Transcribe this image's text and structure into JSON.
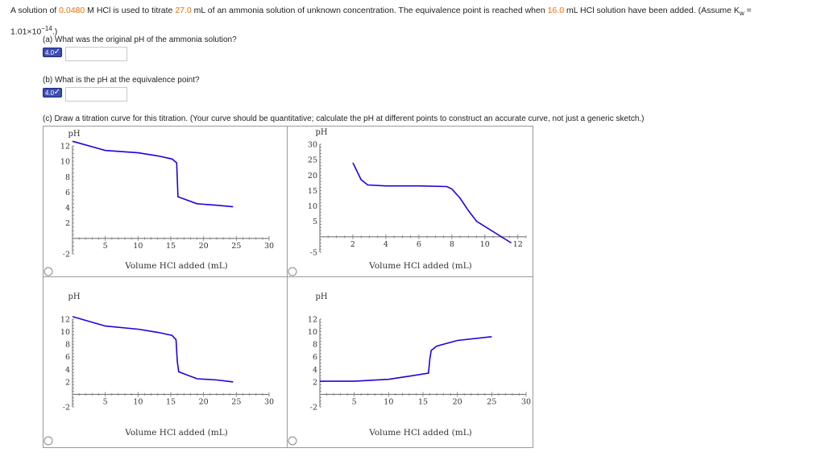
{
  "question": {
    "p1": "A solution of ",
    "hcl_conc": "0.0480",
    "p2": " M HCl is used to titrate ",
    "ammonia_volume": "27.0",
    "p3": " mL of an ammonia solution of unknown concentration. The equivalence point is reached when ",
    "eq_volume": "16.0",
    "p4": " mL HCl solution have been added. (Assume K",
    "kw_sub": "w",
    "p5": " =",
    "kw_value": "1.01×10",
    "kw_exp": "−14",
    "p6": ".)"
  },
  "parts": {
    "a": {
      "label": "(a) What was the original pH of the ammonia solution?",
      "badge": "4.0",
      "value": ""
    },
    "b": {
      "label": "(b) What is the pH at the equivalence point?",
      "badge": "4.0",
      "value": ""
    },
    "c": {
      "label": "(c) Draw a titration curve for this titration. (Your curve should be quantitative; calculate the pH at different points to construct an accurate curve, not just a generic sketch.)"
    }
  },
  "colors": {
    "curve": "#2200dd",
    "highlight": "#e8710a",
    "badge": "#3d4db3"
  },
  "icons": {
    "check": "checkmark-icon",
    "radio": "radio-icon"
  },
  "chart_data": [
    {
      "type": "line",
      "ylabel": "pH",
      "xlabel": "Volume HCl added (mL)",
      "xlim": [
        0,
        30
      ],
      "ylim": [
        -2,
        12
      ],
      "xticks": [
        "5",
        "10",
        "15",
        "20",
        "25",
        "30"
      ],
      "yticks": [
        "12",
        "10",
        "8",
        "6",
        "4",
        "2",
        "-2"
      ],
      "series": [
        {
          "x": [
            0,
            5,
            10,
            13,
            15.2,
            15.9,
            16,
            16.1,
            19,
            22,
            24.5
          ],
          "y": [
            12.6,
            11.4,
            11.1,
            10.7,
            10.3,
            9.8,
            7.6,
            5.4,
            4.5,
            4.3,
            4.1
          ]
        }
      ]
    },
    {
      "type": "line",
      "ylabel": "pH",
      "xlabel": "Volume HCl added (mL)",
      "xlim": [
        0,
        12.5
      ],
      "ylim": [
        -5,
        30
      ],
      "xticks": [
        "2",
        "4",
        "6",
        "8",
        "10",
        "12"
      ],
      "yticks": [
        "30",
        "25",
        "20",
        "15",
        "10",
        "5",
        "-5"
      ],
      "series": [
        {
          "x": [
            2,
            2.5,
            2.9,
            4,
            6,
            7.7,
            8,
            8.5,
            9,
            9.5,
            11.6
          ],
          "y": [
            24,
            18.5,
            16.8,
            16.5,
            16.5,
            16.3,
            15.5,
            12.5,
            8.5,
            5,
            -2
          ]
        }
      ]
    },
    {
      "type": "line",
      "ylabel": "pH",
      "xlabel": "Volume HCl added (mL)",
      "xlim": [
        0,
        30
      ],
      "ylim": [
        -2,
        12
      ],
      "xticks": [
        "5",
        "10",
        "15",
        "20",
        "25",
        "30"
      ],
      "yticks": [
        "12",
        "10",
        "8",
        "6",
        "4",
        "2",
        "-2"
      ],
      "series": [
        {
          "x": [
            0,
            5,
            10,
            13,
            15.2,
            15.8,
            16,
            16.2,
            19,
            22,
            24.5
          ],
          "y": [
            12.4,
            10.9,
            10.4,
            9.9,
            9.4,
            8.7,
            5.2,
            3.6,
            2.5,
            2.3,
            2.0
          ]
        }
      ]
    },
    {
      "type": "line",
      "ylabel": "pH",
      "xlabel": "Volume HCl added (mL)",
      "xlim": [
        0,
        30
      ],
      "ylim": [
        -2,
        12
      ],
      "xticks": [
        "5",
        "10",
        "15",
        "20",
        "25",
        "30"
      ],
      "yticks": [
        "12",
        "10",
        "8",
        "6",
        "4",
        "2",
        "-2"
      ],
      "series": [
        {
          "x": [
            0,
            5,
            10,
            13,
            15.8,
            16,
            16.2,
            17,
            20,
            25
          ],
          "y": [
            2.1,
            2.1,
            2.4,
            2.9,
            3.4,
            5.6,
            7.0,
            7.7,
            8.6,
            9.2
          ]
        }
      ]
    }
  ]
}
